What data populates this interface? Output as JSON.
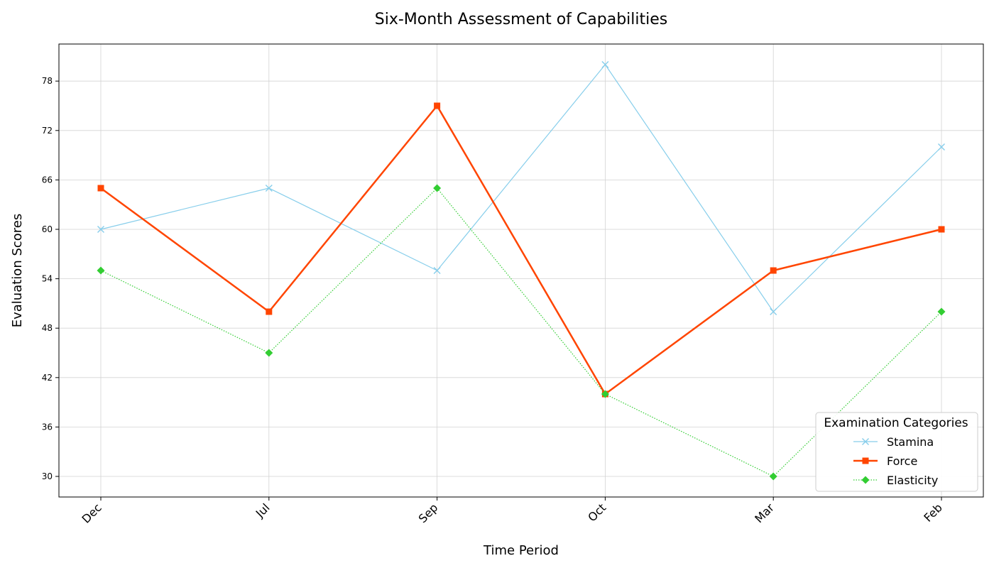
{
  "chart_data": {
    "type": "line",
    "title": "Six-Month Assessment of Capabilities",
    "xlabel": "Time Period",
    "ylabel": "Evaluation Scores",
    "categories": [
      "Dec",
      "Jul",
      "Sep",
      "Oct",
      "Mar",
      "Feb"
    ],
    "yticks": [
      "30",
      "36",
      "42",
      "48",
      "54",
      "60",
      "66",
      "72",
      "78"
    ],
    "ylim": [
      27.5,
      82.5
    ],
    "grid": true,
    "legend": {
      "title": "Examination Categories",
      "placement": "lower-right"
    },
    "series": [
      {
        "name": "Stamina",
        "values": [
          60,
          65,
          55,
          80,
          50,
          70
        ],
        "color": "#87CEEB",
        "marker": "x",
        "style": "solid",
        "width": 1.2
      },
      {
        "name": "Force",
        "values": [
          65,
          50,
          75,
          40,
          55,
          60
        ],
        "color": "#FF4500",
        "marker": "square",
        "style": "solid",
        "width": 2.5
      },
      {
        "name": "Elasticity",
        "values": [
          55,
          45,
          65,
          40,
          30,
          50
        ],
        "color": "#32CD32",
        "marker": "diamond",
        "style": "dotted",
        "width": 1.2
      }
    ]
  }
}
